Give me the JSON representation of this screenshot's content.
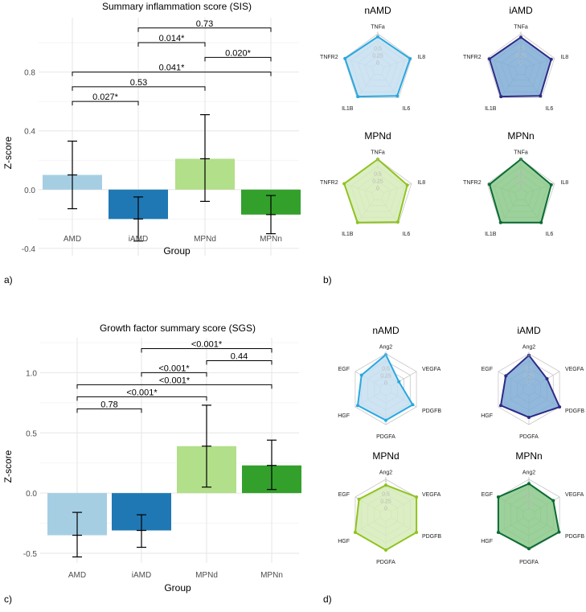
{
  "panel_labels": [
    "a)",
    "b)",
    "c)",
    "d)"
  ],
  "chart_data": [
    {
      "id": "sis",
      "type": "bar",
      "title": "Summary inflammation score (SIS)",
      "xlabel": "Group",
      "ylabel": "Z-score",
      "categories": [
        "AMD",
        "iAMD",
        "MPNd",
        "MPNn"
      ],
      "values": [
        0.1,
        -0.2,
        0.21,
        -0.17
      ],
      "error_low": [
        -0.13,
        -0.35,
        -0.08,
        -0.3
      ],
      "error_high": [
        0.33,
        -0.05,
        0.51,
        -0.04
      ],
      "colors": [
        "#a6cee3",
        "#1f78b4",
        "#b2df8a",
        "#33a02c"
      ],
      "yticks": [
        -0.4,
        0.0,
        0.4,
        0.8
      ],
      "ytick_labels": [
        "-0.4",
        "0.0",
        "0.4",
        "0.8"
      ],
      "ylim": [
        -0.45,
        1.17
      ],
      "grid": true,
      "comparisons": [
        {
          "from": 0,
          "to": 1,
          "y": 0.6,
          "label": "0.027*"
        },
        {
          "from": 0,
          "to": 2,
          "y": 0.7,
          "label": "0.53"
        },
        {
          "from": 0,
          "to": 3,
          "y": 0.8,
          "label": "0.041*"
        },
        {
          "from": 2,
          "to": 3,
          "y": 0.9,
          "label": "0.020*"
        },
        {
          "from": 1,
          "to": 2,
          "y": 1.0,
          "label": "0.014*"
        },
        {
          "from": 1,
          "to": 3,
          "y": 1.1,
          "label": "0.73"
        }
      ]
    },
    {
      "id": "sgs",
      "type": "bar",
      "title": "Growth factor summary score (SGS)",
      "xlabel": "Group",
      "ylabel": "Z-score",
      "categories": [
        "AMD",
        "iAMD",
        "MPNd",
        "MPNn"
      ],
      "values": [
        -0.35,
        -0.31,
        0.39,
        0.23
      ],
      "error_low": [
        -0.53,
        -0.45,
        0.05,
        0.03
      ],
      "error_high": [
        -0.16,
        -0.18,
        0.73,
        0.44
      ],
      "colors": [
        "#a6cee3",
        "#1f78b4",
        "#b2df8a",
        "#33a02c"
      ],
      "yticks": [
        -0.5,
        0.0,
        0.5,
        1.0
      ],
      "ytick_labels": [
        "-0.5",
        "0.0",
        "0.5",
        "1.0"
      ],
      "ylim": [
        -0.58,
        1.29
      ],
      "grid": true,
      "comparisons": [
        {
          "from": 0,
          "to": 1,
          "y": 0.7,
          "label": "0.78"
        },
        {
          "from": 0,
          "to": 2,
          "y": 0.8,
          "label": "<0.001*"
        },
        {
          "from": 0,
          "to": 3,
          "y": 0.9,
          "label": "<0.001*"
        },
        {
          "from": 1,
          "to": 2,
          "y": 1.0,
          "label": "<0.001*"
        },
        {
          "from": 2,
          "to": 3,
          "y": 1.1,
          "label": "0.44"
        },
        {
          "from": 1,
          "to": 3,
          "y": 1.2,
          "label": "<0.001*"
        }
      ]
    },
    {
      "id": "sis-radar",
      "type": "radar",
      "axes": [
        "TNFa",
        "IL8",
        "IL6",
        "IL1B",
        "TNFR2"
      ],
      "scale_labels": [
        "0",
        "0.25",
        "0.5",
        "1"
      ],
      "range": [
        0,
        1
      ],
      "series": [
        {
          "name": "nAMD",
          "color": "#29a8e0",
          "fill": "#c6dff0",
          "values": [
            0.9,
            0.95,
            0.92,
            0.95,
            0.97
          ]
        },
        {
          "name": "iAMD",
          "color": "#2e2a86",
          "fill": "#7fadd6",
          "values": [
            0.88,
            0.88,
            0.92,
            0.95,
            0.92
          ]
        },
        {
          "name": "MPNd",
          "color": "#8fc31f",
          "fill": "#d6ebb8",
          "values": [
            1.0,
            0.85,
            0.95,
            0.97,
            1.0
          ]
        },
        {
          "name": "MPNn",
          "color": "#0b6b34",
          "fill": "#8cc98a",
          "values": [
            1.0,
            0.88,
            0.97,
            0.97,
            0.92
          ]
        }
      ]
    },
    {
      "id": "sgs-radar",
      "type": "radar",
      "axes": [
        "Ang2",
        "VEGFA",
        "PDGFB",
        "PDGFA",
        "HGF",
        "EGF"
      ],
      "scale_labels": [
        "0",
        "0.25",
        "0.5",
        "1"
      ],
      "range": [
        0,
        1
      ],
      "series": [
        {
          "name": "nAMD",
          "color": "#29a8e0",
          "fill": "#c6dff0",
          "values": [
            0.97,
            0.3,
            0.85,
            0.85,
            0.9,
            0.75
          ]
        },
        {
          "name": "iAMD",
          "color": "#2e2a86",
          "fill": "#7fadd6",
          "values": [
            0.95,
            0.5,
            1.0,
            0.75,
            0.9,
            0.7
          ]
        },
        {
          "name": "MPNd",
          "color": "#8fc31f",
          "fill": "#d6ebb8",
          "values": [
            0.8,
            1.0,
            1.0,
            1.0,
            1.0,
            0.85
          ]
        },
        {
          "name": "MPNn",
          "color": "#0b6b34",
          "fill": "#8cc98a",
          "values": [
            0.85,
            0.75,
            0.98,
            0.95,
            1.0,
            1.0
          ]
        }
      ]
    }
  ]
}
